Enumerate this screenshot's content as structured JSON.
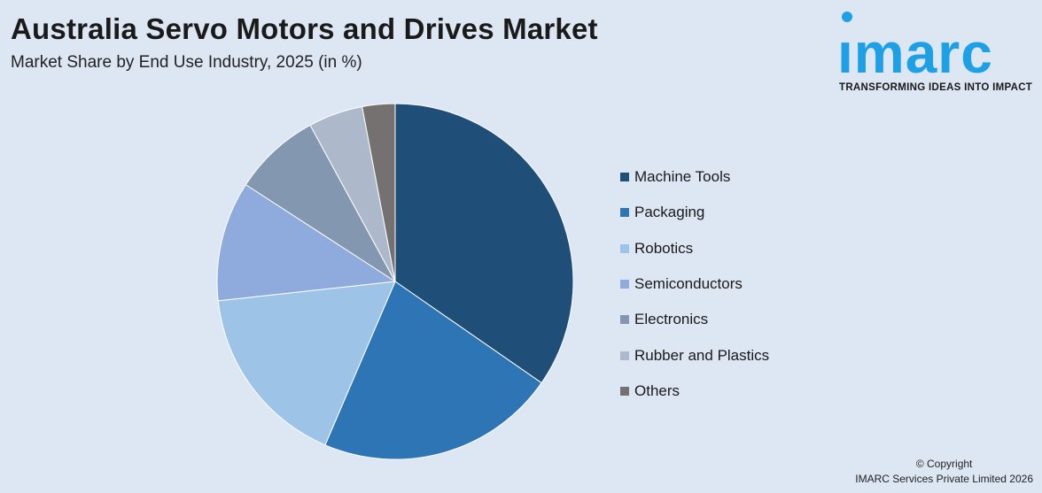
{
  "header": {
    "title": "Australia Servo Motors and Drives Market",
    "subtitle": "Market Share by End Use Industry, 2025 (in %)"
  },
  "logo": {
    "word": "ımarc",
    "tagline": "TRANSFORMING IDEAS INTO IMPACT",
    "color": "#1ea0e6"
  },
  "chart_data": {
    "type": "pie",
    "title": "Australia Servo Motors and Drives Market",
    "subtitle": "Market Share by End Use Industry, 2025 (in %)",
    "categories": [
      "Machine Tools",
      "Packaging",
      "Robotics",
      "Semiconductors",
      "Electronics",
      "Rubber and Plastics",
      "Others"
    ],
    "values": [
      35,
      22,
      17,
      11,
      8,
      5,
      3
    ],
    "colors": [
      "#1f4e79",
      "#2e75b6",
      "#9dc3e6",
      "#8faadc",
      "#8497b0",
      "#adb9ca",
      "#757171"
    ],
    "start_angle": "12 o'clock",
    "direction": "clockwise",
    "legend_position": "right"
  },
  "footer": {
    "copyright_line1": "© Copyright",
    "copyright_line2": "IMARC Services Private Limited 2026"
  }
}
